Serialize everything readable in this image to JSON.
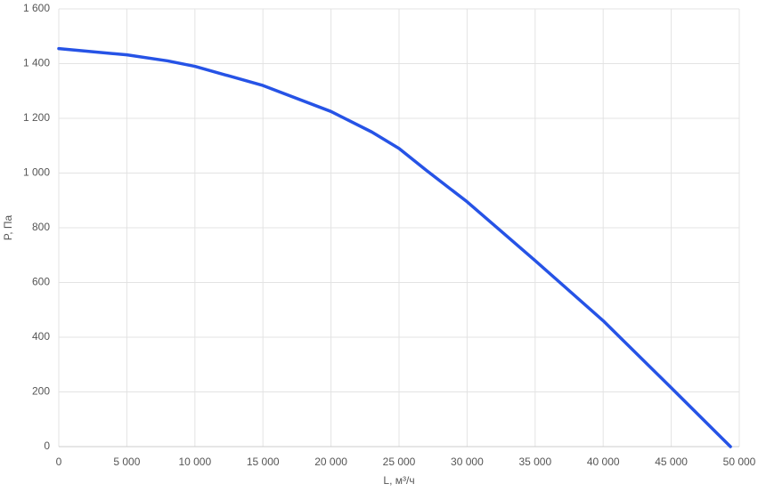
{
  "chart_data": {
    "type": "line",
    "x_label": "L, м³/ч",
    "y_label": "P, Па",
    "x": [
      0,
      5000,
      8000,
      10000,
      15000,
      20000,
      23000,
      25000,
      27000,
      30000,
      35000,
      40000,
      45000,
      49350
    ],
    "values": [
      1455,
      1432,
      1410,
      1390,
      1320,
      1225,
      1150,
      1090,
      1010,
      895,
      680,
      460,
      215,
      0
    ],
    "color": "#2653e6",
    "xlim": [
      0,
      50000
    ],
    "xticks": [
      0,
      {
        "value": 5000,
        "label": "5 000"
      },
      {
        "value": 10000,
        "label": "10 000"
      },
      {
        "value": 15000,
        "label": "15 000"
      },
      {
        "value": 20000,
        "label": "20 000"
      },
      {
        "value": 25000,
        "label": "25 000"
      },
      {
        "value": 30000,
        "label": "30 000"
      },
      {
        "value": 35000,
        "label": "35 000"
      },
      {
        "value": 40000,
        "label": "40 000"
      },
      {
        "value": 45000,
        "label": "45 000"
      },
      {
        "value": 50000,
        "label": "50 000"
      }
    ],
    "ylim": [
      0,
      1600
    ],
    "yticks": [
      0,
      200,
      400,
      600,
      800,
      {
        "value": 1000,
        "label": "1 000"
      },
      {
        "value": 1200,
        "label": "1 200"
      },
      {
        "value": 1400,
        "label": "1 400"
      },
      {
        "value": 1600,
        "label": "1 600"
      }
    ],
    "grid": true
  }
}
